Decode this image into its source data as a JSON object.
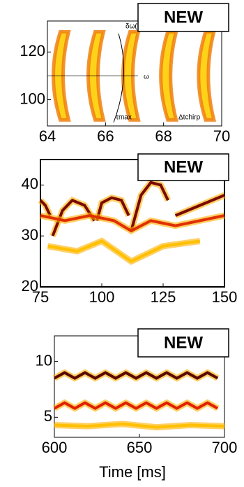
{
  "chart_data": [
    {
      "type": "chirp",
      "badge": "NEW",
      "annotations": [
        "δω(t)",
        "ω",
        "τmax",
        "Δtchirp"
      ],
      "xlim": [
        64,
        70
      ],
      "ylim": [
        89,
        133
      ],
      "xticks": [
        64,
        66,
        68,
        70
      ],
      "yticks": [
        100,
        120
      ],
      "series": [
        {
          "color": "#f08010",
          "x": [
            64.3,
            65.5,
            66.7,
            68.0,
            69.3
          ],
          "values": [
            110,
            110,
            110,
            110,
            110
          ]
        }
      ]
    },
    {
      "type": "spectrogram",
      "badge": "NEW",
      "xlim": [
        75,
        150
      ],
      "ylim": [
        20,
        45
      ],
      "xticks": [
        75,
        100,
        125,
        150
      ],
      "yticks": [
        20,
        30,
        40
      ],
      "series": [
        {
          "color": "#7a0a00",
          "x": [
            75,
            77,
            79,
            79.5,
            80,
            84,
            88,
            93,
            97,
            97.5,
            98,
            100,
            104,
            108,
            111,
            111.5,
            112,
            116,
            120,
            124,
            127,
            128,
            130,
            140,
            150
          ],
          "values": [
            37,
            36,
            34,
            null,
            30,
            35,
            37,
            36,
            33,
            null,
            33,
            36.5,
            37.5,
            37,
            34,
            null,
            31,
            38,
            40.5,
            40,
            37,
            null,
            34,
            36,
            38
          ]
        },
        {
          "color": "#e03000",
          "x": [
            75,
            85,
            95,
            105,
            112,
            120,
            130,
            140,
            150
          ],
          "values": [
            34,
            33,
            34,
            33,
            31,
            33,
            32,
            33,
            34
          ]
        },
        {
          "color": "#ffc000",
          "x": [
            78,
            90,
            100,
            112,
            125,
            140
          ],
          "values": [
            28,
            27,
            29,
            25,
            28,
            29
          ]
        }
      ]
    },
    {
      "type": "spectrogram",
      "badge": "NEW",
      "xlabel": "Time [ms]",
      "xlim": [
        600,
        700
      ],
      "ylim": [
        3.2,
        12.3
      ],
      "xticks": [
        600,
        650,
        700
      ],
      "yticks": [
        5,
        10
      ],
      "series": [
        {
          "color": "#5a0a00",
          "x": [
            600,
            606,
            612,
            618,
            624,
            630,
            636,
            642,
            648,
            654,
            660,
            666,
            672,
            678,
            684,
            690,
            696
          ],
          "values": [
            8.5,
            9.0,
            8.5,
            9.0,
            8.5,
            9.0,
            8.5,
            9.0,
            8.5,
            9.0,
            8.5,
            9.0,
            8.5,
            9.0,
            8.5,
            9.0,
            8.5
          ]
        },
        {
          "color": "#e02000",
          "x": [
            600,
            606,
            612,
            618,
            624,
            630,
            636,
            642,
            648,
            654,
            660,
            666,
            672,
            678,
            684,
            690,
            696
          ],
          "values": [
            5.8,
            6.3,
            5.8,
            6.3,
            5.8,
            6.3,
            5.8,
            6.3,
            5.8,
            6.3,
            5.8,
            6.3,
            5.8,
            6.3,
            5.8,
            6.3,
            5.8
          ]
        },
        {
          "color": "#ffc000",
          "x": [
            600,
            620,
            640,
            660,
            680,
            700
          ],
          "values": [
            4.3,
            4.2,
            4.4,
            4.1,
            4.3,
            4.2
          ]
        }
      ]
    }
  ]
}
